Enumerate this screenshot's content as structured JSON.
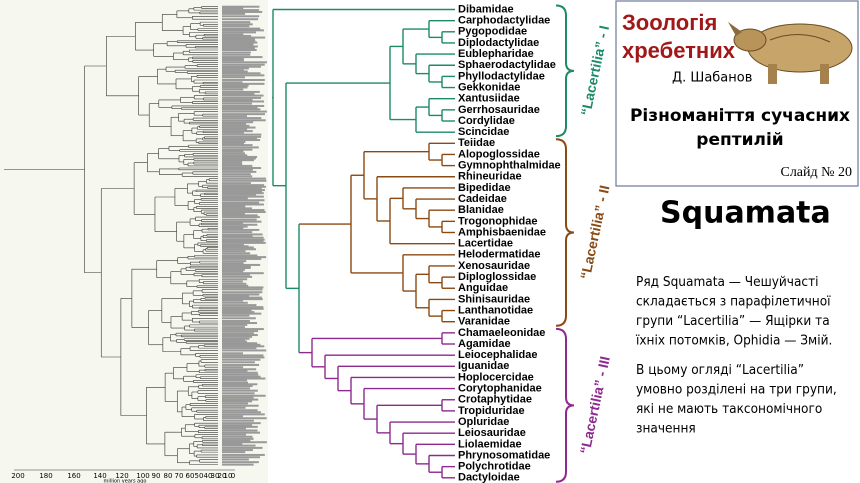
{
  "tree_axis": {
    "ticks": [
      200,
      180,
      160,
      140,
      120,
      100,
      90,
      80,
      70,
      60,
      50,
      40,
      30,
      20,
      10,
      0
    ],
    "label": "million years ago"
  },
  "groups": [
    {
      "label": "“Lacertilia” - I",
      "color": "#1d8a6a",
      "families": [
        "Dibamidae",
        "Carphodactylidae",
        "Pygopodidae",
        "Diplodactylidae",
        "Eublepharidae",
        "Sphaerodactylidae",
        "Phyllodactylidae",
        "Gekkonidae",
        "Xantusiidae",
        "Gerrhosauridae",
        "Cordylidae",
        "Scincidae"
      ]
    },
    {
      "label": "“Lacertilia” - II",
      "color": "#8b4a14",
      "families": [
        "Teiidae",
        "Alopoglossidae",
        "Gymnophthalmidae",
        "Rhineuridae",
        "Bipedidae",
        "Cadeidae",
        "Blanidae",
        "Trogonophidae",
        "Amphisbaenidae",
        "Lacertidae",
        "Helodermatidae",
        "Xenosauridae",
        "Diploglossidae",
        "Anguidae",
        "Shinisauridae",
        "Lanthanotidae",
        "Varanidae"
      ]
    },
    {
      "label": "“Lacertilia” - III",
      "color": "#8e2a8e",
      "families": [
        "Chamaeleonidae",
        "Agamidae",
        "Leiocephalidae",
        "Iguanidae",
        "Hoplocercidae",
        "Corytophanidae",
        "Crotaphytidae",
        "Tropiduridae",
        "Opluridae",
        "Leiosauridae",
        "Liolaemidae",
        "Phrynosomatidae",
        "Polychrotidae",
        "Dactyloidae"
      ]
    }
  ],
  "header": {
    "course_line1": "Зоологія",
    "course_line2": "хребетних",
    "author": "Д. Шабанов",
    "topic_line1": "Різноманіття сучасних",
    "topic_line2": "рептилій",
    "slide": "Слайд № 20"
  },
  "heading": "Squamata",
  "paragraphs": [
    [
      "Ряд Squamata — Чешуйчасті",
      "складається з парафілетичної",
      "групи “Lacertilia” — Ящірки та",
      "їхніх потомків, Ophidia — Змій."
    ],
    [
      "В цьому огляді “Lacertilia”",
      "умовно розділені на три групи,",
      "які не мають таксономічного",
      "значення"
    ]
  ]
}
